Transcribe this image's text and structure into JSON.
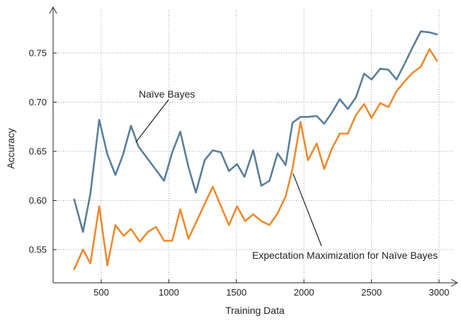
{
  "chart_data": {
    "type": "line",
    "xlabel": "Training Data",
    "ylabel": "Accuracy",
    "xlim": [
      200,
      3100
    ],
    "ylim": [
      0.515,
      0.78
    ],
    "xticks": [
      500,
      1000,
      1500,
      2000,
      2500,
      3000
    ],
    "yticks": [
      0.55,
      0.6,
      0.65,
      0.7,
      0.75
    ],
    "xtick_labels": [
      "500",
      "1000",
      "1500",
      "2000",
      "2500",
      "3000"
    ],
    "ytick_labels": [
      "0.55",
      "0.60",
      "0.65",
      "0.70",
      "0.75"
    ],
    "grid": true,
    "series": [
      {
        "name": "Naïve Bayes",
        "color": "#5a7f9a",
        "x": [
          300,
          365,
          420,
          485,
          545,
          605,
          660,
          720,
          775,
          965,
          1025,
          1085,
          1145,
          1200,
          1265,
          1325,
          1385,
          1445,
          1505,
          1560,
          1625,
          1685,
          1745,
          1805,
          1865,
          1915,
          1975,
          2030,
          2095,
          2150,
          2205,
          2265,
          2325,
          2385,
          2445,
          2500,
          2565,
          2625,
          2685,
          2745,
          2805,
          2865,
          2930,
          2985
        ],
        "y": [
          0.601,
          0.568,
          0.607,
          0.682,
          0.647,
          0.626,
          0.646,
          0.676,
          0.655,
          0.62,
          0.649,
          0.67,
          0.634,
          0.608,
          0.641,
          0.651,
          0.649,
          0.63,
          0.637,
          0.624,
          0.651,
          0.615,
          0.62,
          0.648,
          0.636,
          0.679,
          0.685,
          0.685,
          0.686,
          0.678,
          0.689,
          0.703,
          0.693,
          0.705,
          0.729,
          0.723,
          0.734,
          0.733,
          0.723,
          0.739,
          0.756,
          0.772,
          0.771,
          0.769
        ]
      },
      {
        "name": "Expectation Maximization for Naïve Bayes",
        "color": "#ef8a2e",
        "x": [
          300,
          365,
          420,
          485,
          545,
          605,
          665,
          720,
          785,
          845,
          905,
          965,
          1025,
          1085,
          1145,
          1325,
          1445,
          1505,
          1565,
          1625,
          1685,
          1745,
          1805,
          1865,
          1915,
          1975,
          2030,
          2095,
          2150,
          2205,
          2265,
          2325,
          2385,
          2445,
          2500,
          2565,
          2625,
          2685,
          2745,
          2805,
          2865,
          2930,
          2985
        ],
        "y": [
          0.53,
          0.55,
          0.536,
          0.594,
          0.534,
          0.575,
          0.564,
          0.571,
          0.558,
          0.568,
          0.573,
          0.559,
          0.559,
          0.591,
          0.561,
          0.614,
          0.575,
          0.594,
          0.579,
          0.586,
          0.579,
          0.575,
          0.587,
          0.604,
          0.632,
          0.68,
          0.641,
          0.658,
          0.632,
          0.652,
          0.668,
          0.668,
          0.687,
          0.698,
          0.684,
          0.699,
          0.695,
          0.711,
          0.721,
          0.73,
          0.736,
          0.754,
          0.742
        ]
      }
    ],
    "annotations": [
      {
        "text": "Naïve Bayes",
        "target_series": 0,
        "target_x": 755
      },
      {
        "text": "Expectation Maximization for Naïve Bayes",
        "target_series": 1,
        "target_x": 1920
      }
    ]
  }
}
